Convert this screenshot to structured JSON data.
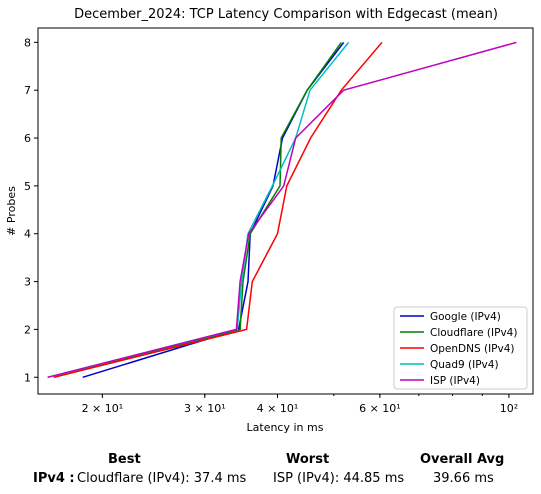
{
  "chart_data": {
    "type": "line",
    "title": "December_2024: TCP Latency Comparison with Edgecast (mean)",
    "xlabel": "Latency in ms",
    "ylabel": "# Probes",
    "xscale": "log",
    "xlim": [
      15.5,
      110
    ],
    "ylim": [
      0.65,
      8.3
    ],
    "x_tick_labels": [
      {
        "value": 20,
        "label": "2 × 10¹"
      },
      {
        "value": 30,
        "label": "3 × 10¹"
      },
      {
        "value": 40,
        "label": "4 × 10¹"
      },
      {
        "value": 60,
        "label": "6 × 10¹"
      },
      {
        "value": 100,
        "label": "10²"
      }
    ],
    "y_ticks": [
      "1",
      "2",
      "3",
      "4",
      "5",
      "6",
      "7",
      "8"
    ],
    "grid": false,
    "legend_position": "bottom-right",
    "series": [
      {
        "name": "Google (IPv4)",
        "color": "#0000cc",
        "points": [
          [
            18.5,
            1
          ],
          [
            34.3,
            2
          ],
          [
            35.6,
            3
          ],
          [
            35.9,
            4
          ],
          [
            39.3,
            5
          ],
          [
            40.8,
            6
          ],
          [
            45.0,
            7
          ],
          [
            52.0,
            8
          ]
        ]
      },
      {
        "name": "Cloudflare (IPv4)",
        "color": "#007f00",
        "points": [
          [
            16.5,
            1
          ],
          [
            34.5,
            2
          ],
          [
            34.9,
            3
          ],
          [
            35.9,
            4
          ],
          [
            40.4,
            5
          ],
          [
            40.6,
            6
          ],
          [
            45.0,
            7
          ],
          [
            51.5,
            8
          ]
        ]
      },
      {
        "name": "OpenDNS (IPv4)",
        "color": "#ff0000",
        "points": [
          [
            16.5,
            1
          ],
          [
            35.4,
            2
          ],
          [
            36.2,
            3
          ],
          [
            40.0,
            4
          ],
          [
            41.5,
            5
          ],
          [
            45.6,
            6
          ],
          [
            51.5,
            7
          ],
          [
            60.5,
            8
          ]
        ]
      },
      {
        "name": "Quad9 (IPv4)",
        "color": "#00bfbf",
        "points": [
          [
            16.1,
            1
          ],
          [
            34.1,
            2
          ],
          [
            34.7,
            3
          ],
          [
            35.6,
            4
          ],
          [
            39.2,
            5
          ],
          [
            43.0,
            6
          ],
          [
            45.5,
            7
          ],
          [
            53.0,
            8
          ]
        ]
      },
      {
        "name": "ISP (IPv4)",
        "color": "#bf00bf",
        "points": [
          [
            16.1,
            1
          ],
          [
            34.0,
            2
          ],
          [
            34.5,
            3
          ],
          [
            35.7,
            4
          ],
          [
            41.0,
            5
          ],
          [
            43.0,
            6
          ],
          [
            52.0,
            7
          ],
          [
            103.0,
            8
          ]
        ]
      }
    ]
  },
  "summary": {
    "best_header": "Best",
    "worst_header": "Worst",
    "avg_header": "Overall Avg",
    "row_label": "IPv4 :",
    "best_value": "Cloudflare (IPv4): 37.4 ms",
    "worst_value": "ISP (IPv4): 44.85 ms",
    "avg_value": "39.66 ms"
  }
}
